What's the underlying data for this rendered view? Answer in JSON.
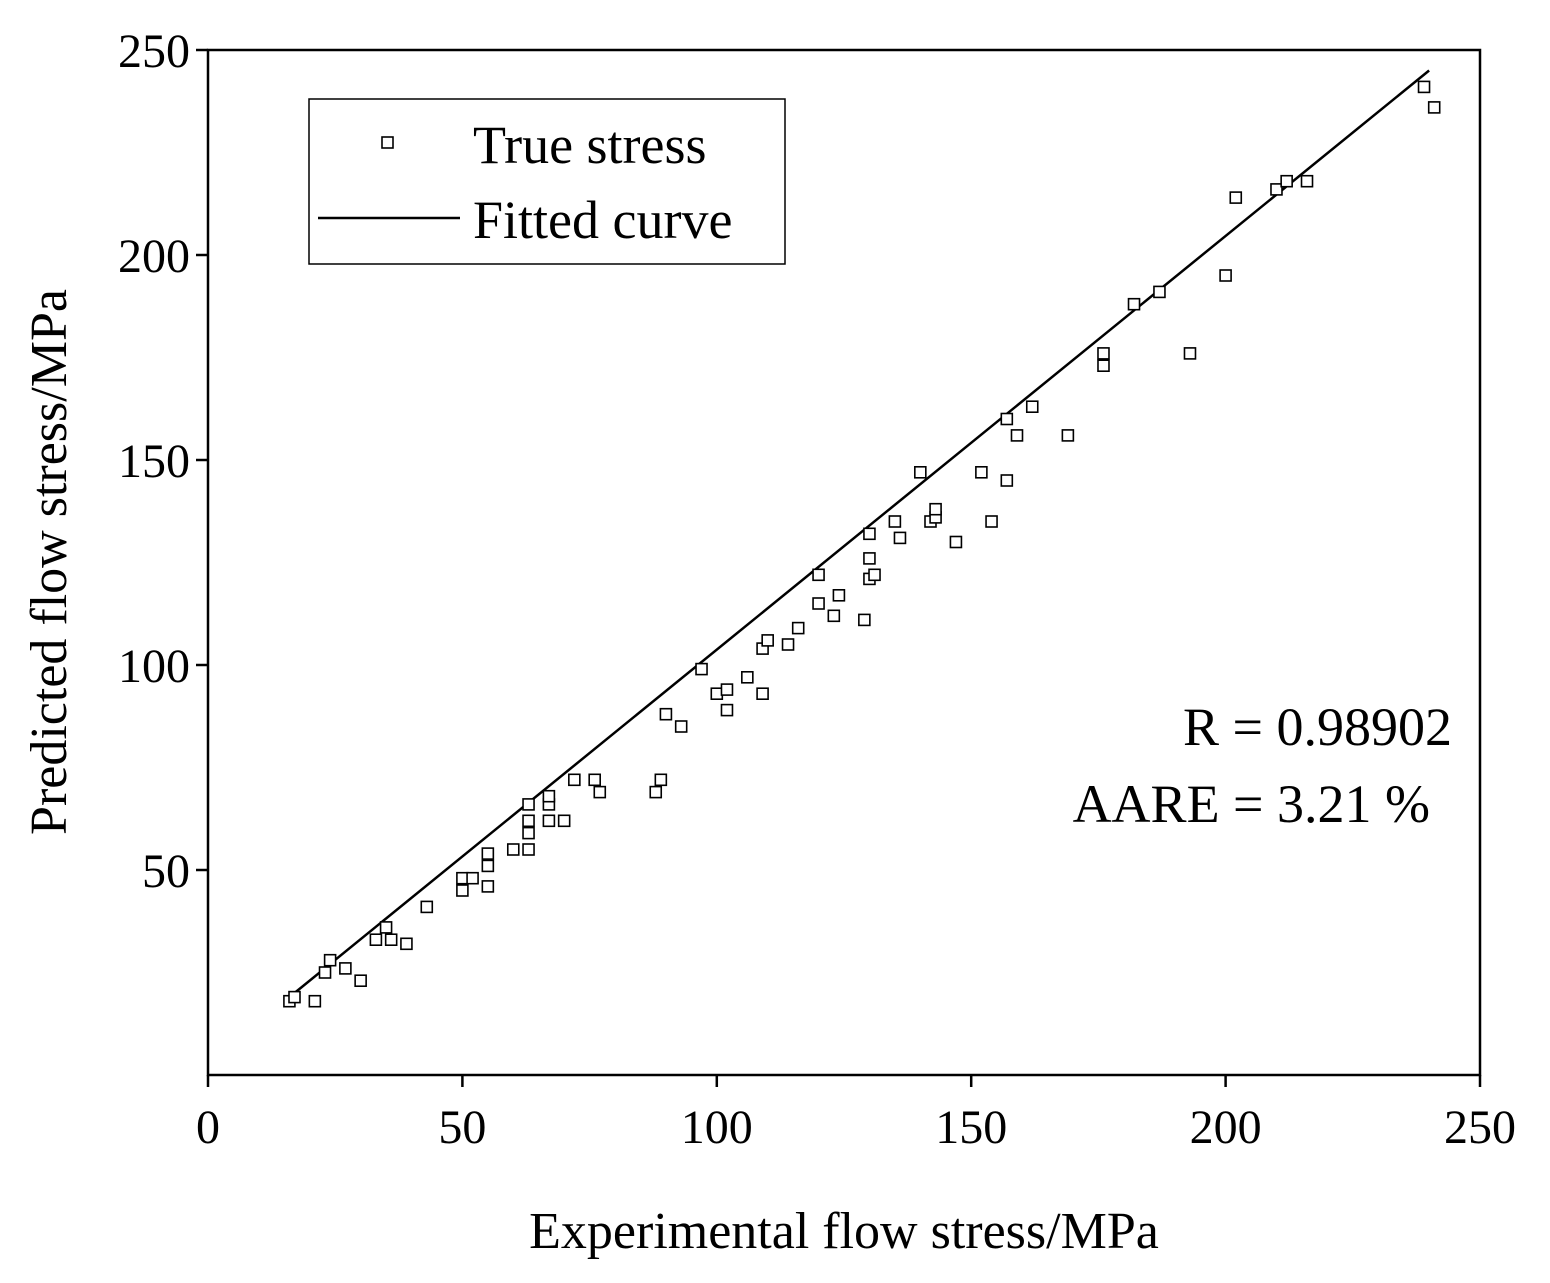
{
  "chart_data": {
    "type": "scatter",
    "xlabel": "Experimental flow stress/MPa",
    "ylabel": "Predicted flow stress/MPa",
    "xlim": [
      0,
      250
    ],
    "ylim": [
      0,
      250
    ],
    "xticks": [
      "0",
      "50",
      "100",
      "150",
      "200",
      "250"
    ],
    "yticks": [
      "50",
      "100",
      "150",
      "200",
      "250"
    ],
    "legend": {
      "position": "top-left",
      "entries": [
        {
          "label": "True stress",
          "marker": "square"
        },
        {
          "label": "Fitted curve",
          "marker": "line"
        }
      ]
    },
    "annotations": [
      "R = 0.98902",
      "AARE = 3.21 %"
    ],
    "fitted_curve": {
      "x": [
        16,
        240
      ],
      "y": [
        19,
        245
      ]
    },
    "series": [
      {
        "name": "True stress",
        "points": [
          [
            16,
            18
          ],
          [
            17,
            19
          ],
          [
            21,
            18
          ],
          [
            23,
            25
          ],
          [
            24,
            28
          ],
          [
            27,
            26
          ],
          [
            30,
            23
          ],
          [
            33,
            33
          ],
          [
            35,
            36
          ],
          [
            36,
            33
          ],
          [
            39,
            32
          ],
          [
            43,
            41
          ],
          [
            50,
            45
          ],
          [
            50,
            48
          ],
          [
            52,
            48
          ],
          [
            55,
            46
          ],
          [
            55,
            51
          ],
          [
            55,
            54
          ],
          [
            60,
            55
          ],
          [
            63,
            55
          ],
          [
            63,
            59
          ],
          [
            63,
            62
          ],
          [
            63,
            66
          ],
          [
            67,
            62
          ],
          [
            67,
            66
          ],
          [
            67,
            68
          ],
          [
            70,
            62
          ],
          [
            72,
            72
          ],
          [
            76,
            72
          ],
          [
            77,
            69
          ],
          [
            88,
            69
          ],
          [
            89,
            72
          ],
          [
            90,
            88
          ],
          [
            93,
            85
          ],
          [
            97,
            99
          ],
          [
            100,
            93
          ],
          [
            102,
            89
          ],
          [
            102,
            94
          ],
          [
            106,
            97
          ],
          [
            109,
            93
          ],
          [
            109,
            104
          ],
          [
            110,
            106
          ],
          [
            114,
            105
          ],
          [
            116,
            109
          ],
          [
            120,
            115
          ],
          [
            120,
            122
          ],
          [
            123,
            112
          ],
          [
            124,
            117
          ],
          [
            129,
            111
          ],
          [
            130,
            121
          ],
          [
            130,
            126
          ],
          [
            130,
            132
          ],
          [
            131,
            122
          ],
          [
            135,
            135
          ],
          [
            136,
            131
          ],
          [
            140,
            147
          ],
          [
            142,
            135
          ],
          [
            143,
            136
          ],
          [
            143,
            138
          ],
          [
            147,
            130
          ],
          [
            152,
            147
          ],
          [
            154,
            135
          ],
          [
            157,
            145
          ],
          [
            157,
            160
          ],
          [
            159,
            156
          ],
          [
            162,
            163
          ],
          [
            169,
            156
          ],
          [
            176,
            173
          ],
          [
            176,
            176
          ],
          [
            182,
            188
          ],
          [
            187,
            191
          ],
          [
            193,
            176
          ],
          [
            200,
            195
          ],
          [
            202,
            214
          ],
          [
            210,
            216
          ],
          [
            212,
            218
          ],
          [
            216,
            218
          ],
          [
            239,
            241
          ],
          [
            241,
            236
          ]
        ]
      }
    ]
  }
}
